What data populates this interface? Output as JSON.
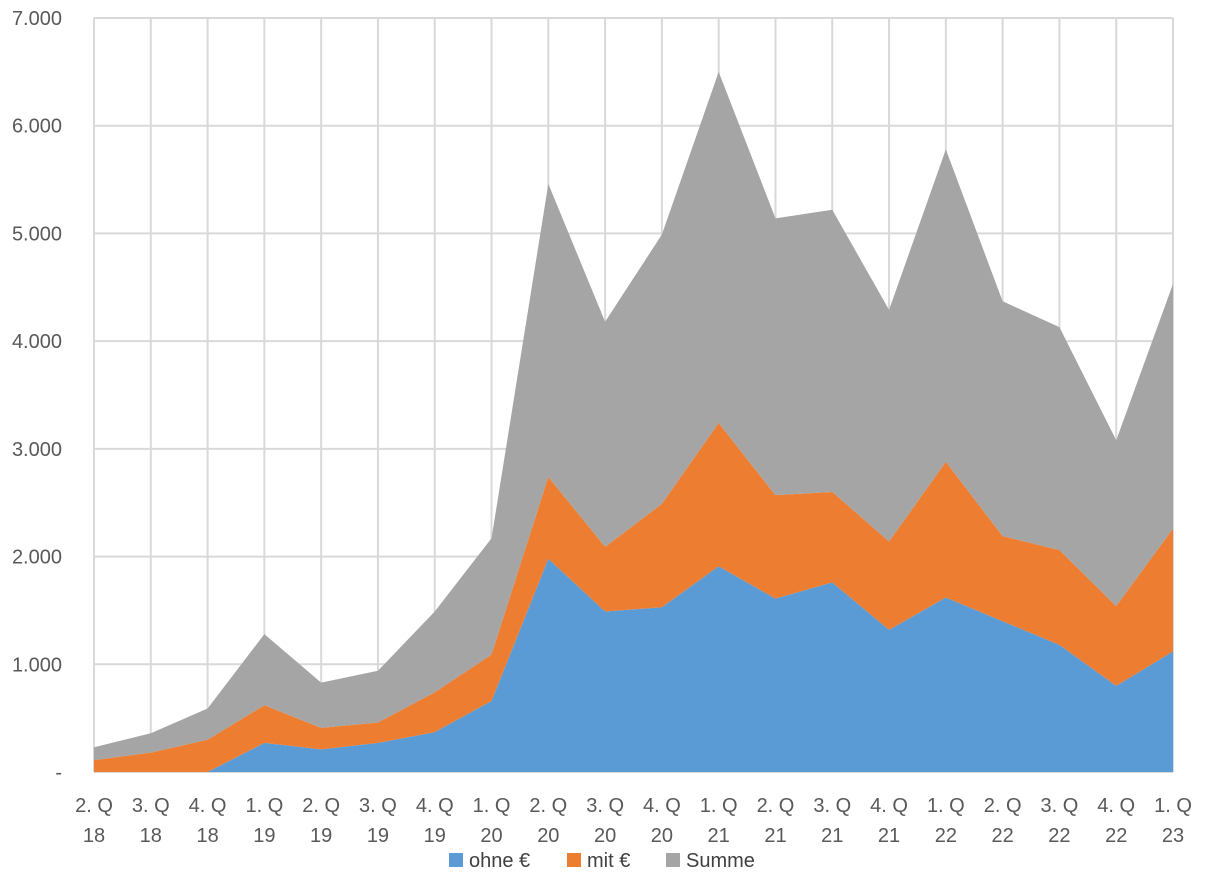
{
  "chart_data": {
    "type": "area",
    "stacked": true,
    "title": "",
    "xlabel": "",
    "ylabel": "",
    "categories": [
      [
        "2. Q",
        "18"
      ],
      [
        "3. Q",
        "18"
      ],
      [
        "4. Q",
        "18"
      ],
      [
        "1. Q",
        "19"
      ],
      [
        "2. Q",
        "19"
      ],
      [
        "3. Q",
        "19"
      ],
      [
        "4. Q",
        "19"
      ],
      [
        "1. Q",
        "20"
      ],
      [
        "2. Q",
        "20"
      ],
      [
        "3. Q",
        "20"
      ],
      [
        "4. Q",
        "20"
      ],
      [
        "1. Q",
        "21"
      ],
      [
        "2. Q",
        "21"
      ],
      [
        "3. Q",
        "21"
      ],
      [
        "4. Q",
        "21"
      ],
      [
        "1. Q",
        "22"
      ],
      [
        "2. Q",
        "22"
      ],
      [
        "3. Q",
        "22"
      ],
      [
        "4. Q",
        "22"
      ],
      [
        "1. Q",
        "23"
      ]
    ],
    "ylim": [
      0,
      7000
    ],
    "yticks": [
      {
        "value": 0,
        "label": "-"
      },
      {
        "value": 1000,
        "label": "1.000"
      },
      {
        "value": 2000,
        "label": "2.000"
      },
      {
        "value": 3000,
        "label": "3.000"
      },
      {
        "value": 4000,
        "label": "4.000"
      },
      {
        "value": 5000,
        "label": "5.000"
      },
      {
        "value": 6000,
        "label": "6.000"
      },
      {
        "value": 7000,
        "label": "7.000"
      }
    ],
    "grid": true,
    "legend_position": "bottom",
    "series": [
      {
        "name": "ohne €",
        "color": "#5b9bd5",
        "values": [
          0,
          0,
          0,
          270,
          210,
          270,
          370,
          660,
          1980,
          1490,
          1530,
          1910,
          1610,
          1760,
          1320,
          1620,
          1400,
          1180,
          800,
          1120
        ]
      },
      {
        "name": "mit €",
        "color": "#ed7d31",
        "values": [
          110,
          180,
          300,
          350,
          200,
          190,
          370,
          430,
          760,
          600,
          960,
          1330,
          960,
          840,
          820,
          1260,
          790,
          880,
          740,
          1140
        ]
      },
      {
        "name": "Summe",
        "color": "#a5a5a5",
        "values": [
          120,
          180,
          290,
          660,
          420,
          480,
          750,
          1080,
          2720,
          2090,
          2500,
          3260,
          2570,
          2620,
          2150,
          2900,
          2180,
          2070,
          1540,
          2270
        ]
      }
    ]
  }
}
